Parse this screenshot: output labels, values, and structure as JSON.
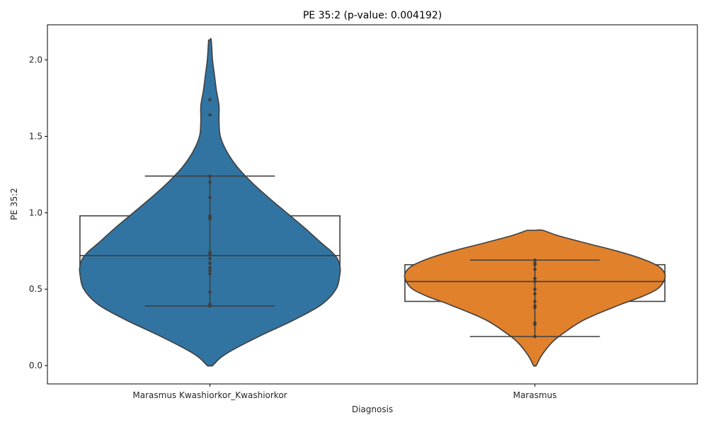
{
  "chart_data": {
    "type": "violin",
    "title": "PE 35:2 (p-value: 0.004192)",
    "xlabel": "Diagnosis",
    "ylabel": "PE 35:2",
    "ylim": [
      -0.12,
      2.23
    ],
    "yticks": [
      "0.0",
      "0.5",
      "1.0",
      "1.5",
      "2.0"
    ],
    "categories": [
      "Marasmus Kwashiorkor_Kwashiorkor",
      "Marasmus"
    ],
    "colors": [
      "#3274a1",
      "#e1812c"
    ],
    "groups": [
      {
        "category": "Marasmus Kwashiorkor_Kwashiorkor",
        "box": {
          "q1": 0.6,
          "median": 0.72,
          "q3": 0.98,
          "whisker_low": 0.39,
          "whisker_high": 1.24
        },
        "violin": {
          "y": [
            0.0,
            0.05,
            0.1,
            0.2,
            0.3,
            0.4,
            0.5,
            0.6,
            0.65,
            0.7,
            0.75,
            0.8,
            0.9,
            1.0,
            1.1,
            1.2,
            1.3,
            1.4,
            1.5,
            1.6,
            1.7,
            1.8,
            1.9,
            2.0,
            2.13
          ],
          "half_width": [
            0.02,
            0.08,
            0.17,
            0.4,
            0.65,
            0.86,
            0.97,
            1.0,
            1.0,
            0.98,
            0.93,
            0.86,
            0.73,
            0.59,
            0.45,
            0.32,
            0.21,
            0.13,
            0.08,
            0.07,
            0.07,
            0.05,
            0.035,
            0.02,
            0.01
          ]
        },
        "points": [
          1.74,
          1.64,
          1.24,
          1.2,
          1.1,
          0.98,
          0.97,
          0.96,
          0.74,
          0.73,
          0.7,
          0.67,
          0.64,
          0.62,
          0.6,
          0.48,
          0.4,
          0.39
        ]
      },
      {
        "category": "Marasmus",
        "box": {
          "q1": 0.42,
          "median": 0.55,
          "q3": 0.66,
          "whisker_low": 0.19,
          "whisker_high": 0.69
        },
        "violin": {
          "y": [
            0.0,
            0.05,
            0.1,
            0.15,
            0.2,
            0.3,
            0.4,
            0.45,
            0.5,
            0.55,
            0.6,
            0.65,
            0.7,
            0.75,
            0.8,
            0.85,
            0.885
          ],
          "half_width": [
            0.01,
            0.04,
            0.08,
            0.13,
            0.2,
            0.38,
            0.66,
            0.82,
            0.94,
            0.99,
            1.0,
            0.95,
            0.82,
            0.63,
            0.4,
            0.18,
            0.06
          ]
        },
        "points": [
          0.69,
          0.67,
          0.66,
          0.63,
          0.57,
          0.55,
          0.5,
          0.47,
          0.42,
          0.39,
          0.38,
          0.28,
          0.27,
          0.19
        ]
      }
    ]
  }
}
